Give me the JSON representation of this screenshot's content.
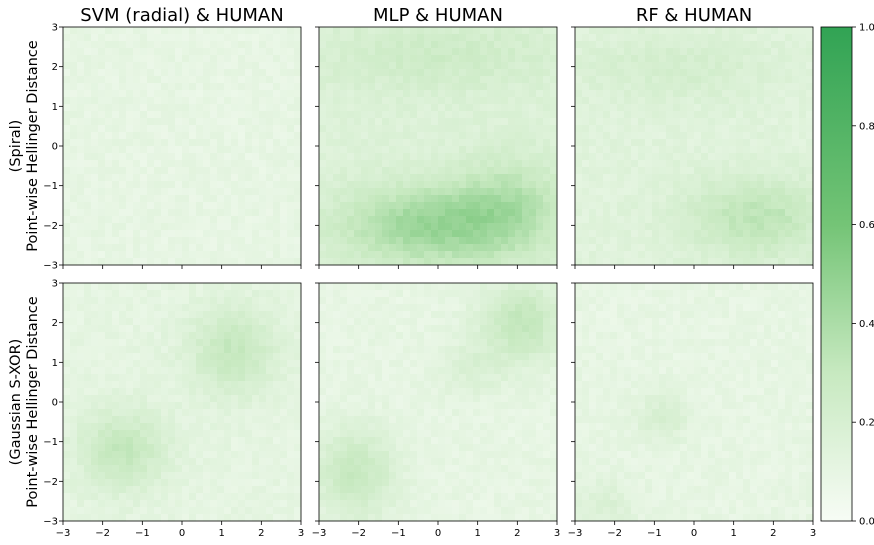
{
  "chart_data": {
    "type": "heatmap",
    "column_titles": [
      "SVM (radial) & HUMAN",
      "MLP & HUMAN",
      "RF & HUMAN"
    ],
    "row_labels": [
      [
        "(Spiral)",
        "Point-wise Hellinger Distance"
      ],
      [
        "(Gaussian S-XOR)",
        "Point-wise Hellinger Distance"
      ]
    ],
    "x_ticks": [
      "−3",
      "−2",
      "−1",
      "0",
      "1",
      "2",
      "3"
    ],
    "y_ticks": [
      "3",
      "2",
      "1",
      "0",
      "−1",
      "−2",
      "−3"
    ],
    "xlim": [
      -3,
      3
    ],
    "ylim": [
      -3,
      3
    ],
    "colorbar": {
      "range": [
        0,
        1
      ],
      "ticks": [
        "0.0",
        "0.2",
        "0.4",
        "0.6",
        "0.8",
        "1.0"
      ],
      "color_low": "#f7fcf5",
      "color_high": "#31a354"
    },
    "panels": [
      {
        "row": 0,
        "col": 0,
        "base": 0.1,
        "blobs": []
      },
      {
        "row": 0,
        "col": 1,
        "base": 0.16,
        "blobs": [
          {
            "cx": -0.2,
            "cy": -2.0,
            "rx": 2.2,
            "ry": 1.0,
            "v": 0.3
          },
          {
            "cx": 1.8,
            "cy": -1.5,
            "rx": 1.4,
            "ry": 1.2,
            "v": 0.18
          },
          {
            "cx": 0.0,
            "cy": 2.3,
            "rx": 3.0,
            "ry": 0.9,
            "v": 0.1
          }
        ]
      },
      {
        "row": 0,
        "col": 2,
        "base": 0.14,
        "blobs": [
          {
            "cx": 1.6,
            "cy": -1.8,
            "rx": 1.8,
            "ry": 1.0,
            "v": 0.2
          },
          {
            "cx": -0.5,
            "cy": 2.0,
            "rx": 2.5,
            "ry": 0.9,
            "v": 0.08
          }
        ]
      },
      {
        "row": 1,
        "col": 0,
        "base": 0.11,
        "blobs": [
          {
            "cx": 1.3,
            "cy": 1.3,
            "rx": 1.1,
            "ry": 1.1,
            "v": 0.2
          },
          {
            "cx": -1.5,
            "cy": -1.2,
            "rx": 1.1,
            "ry": 1.0,
            "v": 0.2
          }
        ]
      },
      {
        "row": 1,
        "col": 1,
        "base": 0.1,
        "blobs": [
          {
            "cx": 2.1,
            "cy": 2.0,
            "rx": 1.0,
            "ry": 1.0,
            "v": 0.22
          },
          {
            "cx": -2.1,
            "cy": -1.8,
            "rx": 1.0,
            "ry": 1.1,
            "v": 0.2
          },
          {
            "cx": 0.8,
            "cy": 0.8,
            "rx": 0.8,
            "ry": 0.7,
            "v": 0.08
          }
        ]
      },
      {
        "row": 1,
        "col": 2,
        "base": 0.1,
        "blobs": [
          {
            "cx": -0.8,
            "cy": -0.4,
            "rx": 0.7,
            "ry": 0.6,
            "v": 0.1
          },
          {
            "cx": -2.3,
            "cy": -2.6,
            "rx": 0.9,
            "ry": 0.6,
            "v": 0.08
          }
        ]
      }
    ]
  }
}
